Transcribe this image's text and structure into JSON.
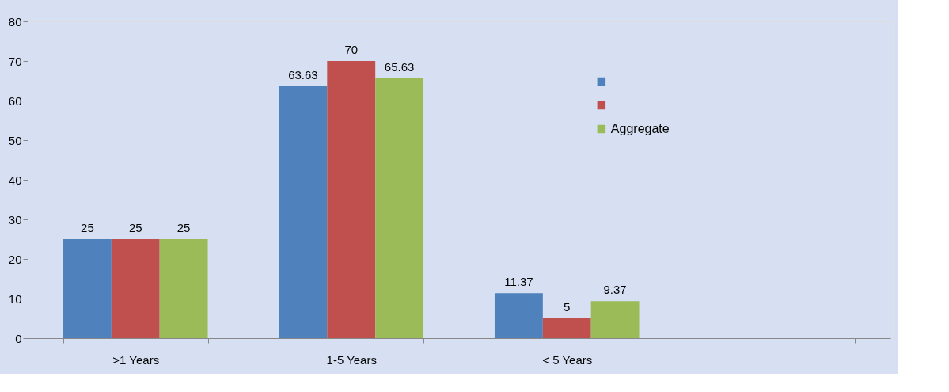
{
  "chart_data": {
    "type": "bar",
    "categories": [
      ">1 Years",
      "1-5 Years",
      "< 5 Years",
      null
    ],
    "series": [
      {
        "color": "#4f81bd",
        "values": [
          25,
          63.63,
          11.37,
          null
        ]
      },
      {
        "color": "#c0504d",
        "values": [
          25,
          70,
          5,
          null
        ]
      },
      {
        "name": "Aggregate",
        "color": "#9bbb59",
        "values": [
          25,
          65.63,
          9.37,
          null
        ]
      }
    ],
    "ylim": [
      0,
      80
    ],
    "yticks": [
      0,
      10,
      20,
      30,
      40,
      50,
      60,
      70,
      80
    ],
    "grid": false,
    "legend": "top right",
    "data_labels": true
  }
}
